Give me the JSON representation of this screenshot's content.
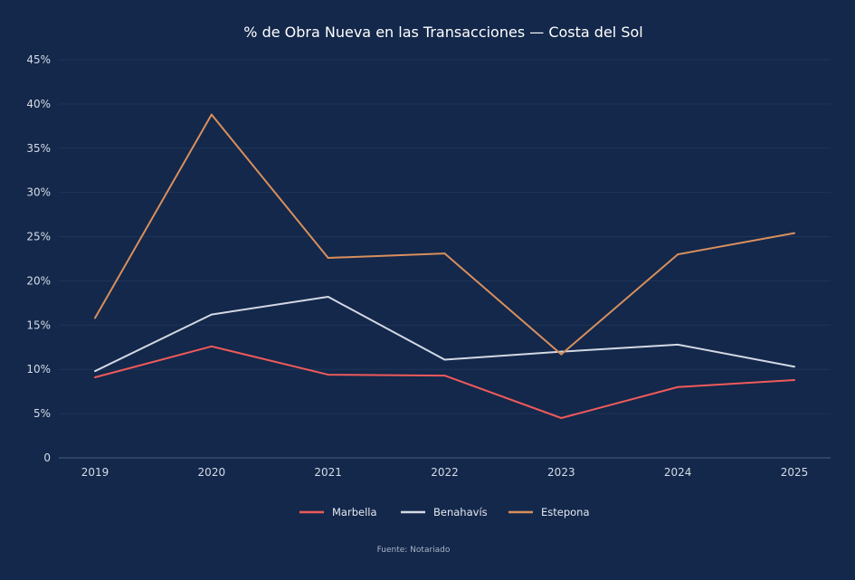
{
  "chart_data": {
    "type": "line",
    "title": "% de Obra Nueva en las Transacciones — Costa del Sol",
    "xlabel": "",
    "ylabel": "",
    "categories": [
      "2019",
      "2020",
      "2021",
      "2022",
      "2023",
      "2024",
      "2025"
    ],
    "ylim": [
      0,
      45
    ],
    "yticks": [
      "0",
      "5%",
      "10%",
      "15%",
      "20%",
      "25%",
      "30%",
      "35%",
      "40%",
      "45%"
    ],
    "grid": true,
    "legend_position": "bottom",
    "series": [
      {
        "name": "Marbella",
        "color": "#f05a5a",
        "values": [
          9.1,
          12.6,
          9.4,
          9.3,
          4.5,
          8.0,
          8.8
        ]
      },
      {
        "name": "Benahavís",
        "color": "#d3d8e3",
        "values": [
          9.8,
          16.2,
          18.2,
          11.1,
          12.0,
          12.8,
          10.3
        ]
      },
      {
        "name": "Estepona",
        "color": "#d98f5c",
        "values": [
          15.8,
          38.8,
          22.6,
          23.1,
          11.7,
          23.0,
          25.4
        ]
      }
    ],
    "source": "Fuente: Notariado"
  },
  "colors": {
    "background": "#13284b",
    "grid": "#1f3558",
    "axis": "#4a5f80"
  }
}
